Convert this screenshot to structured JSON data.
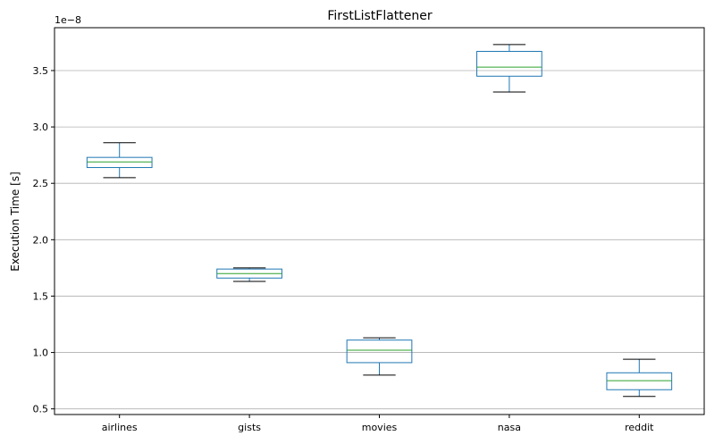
{
  "chart_data": {
    "type": "box",
    "title": "FirstListFlattener",
    "ylabel": "Execution Time [s]",
    "xlabel": "",
    "scale_label": "1e−8",
    "ylim": [
      0.45,
      3.88
    ],
    "yticks": [
      0.5,
      1.0,
      1.5,
      2.0,
      2.5,
      3.0,
      3.5
    ],
    "ytick_labels": [
      "0.5",
      "1.0",
      "1.5",
      "2.0",
      "2.5",
      "3.0",
      "3.5"
    ],
    "grid": "y",
    "categories": [
      "airlines",
      "gists",
      "movies",
      "nasa",
      "reddit"
    ],
    "boxes": [
      {
        "category": "airlines",
        "whisker_low": 2.55,
        "q1": 2.64,
        "median": 2.69,
        "q3": 2.73,
        "whisker_high": 2.86
      },
      {
        "category": "gists",
        "whisker_low": 1.63,
        "q1": 1.66,
        "median": 1.7,
        "q3": 1.74,
        "whisker_high": 1.75
      },
      {
        "category": "movies",
        "whisker_low": 0.8,
        "q1": 0.91,
        "median": 1.02,
        "q3": 1.11,
        "whisker_high": 1.13
      },
      {
        "category": "nasa",
        "whisker_low": 3.31,
        "q1": 3.45,
        "median": 3.53,
        "q3": 3.67,
        "whisker_high": 3.73
      },
      {
        "category": "reddit",
        "whisker_low": 0.61,
        "q1": 0.67,
        "median": 0.75,
        "q3": 0.82,
        "whisker_high": 0.94
      }
    ],
    "colors": {
      "box": "#1f77b4",
      "median": "#2ca02c",
      "whisker_cap": "#000000",
      "grid": "#b0b0b0"
    }
  }
}
